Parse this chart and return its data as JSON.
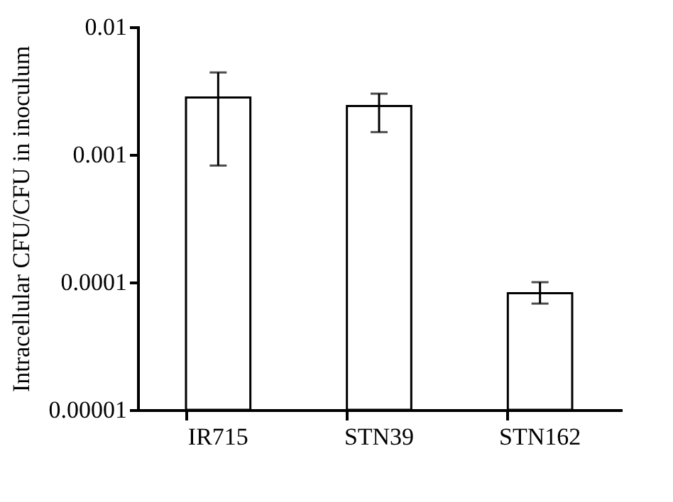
{
  "chart_data": {
    "type": "bar",
    "ylabel": "Intracellular CFU/CFU in inoculum",
    "categories": [
      "IR715",
      "STN39",
      "STN162"
    ],
    "values": [
      0.0028,
      0.0024,
      8.2e-05
    ],
    "errors": [
      [
        0.00082,
        0.0044
      ],
      [
        0.0015,
        0.003
      ],
      [
        6.8e-05,
        0.0001
      ]
    ],
    "color": "#ffffff",
    "log": true,
    "ylim": [
      1e-05,
      0.01
    ],
    "yticks": [
      {
        "value": 1e-05,
        "label": "0.00001"
      },
      0.0001,
      0.001,
      0.01
    ],
    "grid": false
  }
}
